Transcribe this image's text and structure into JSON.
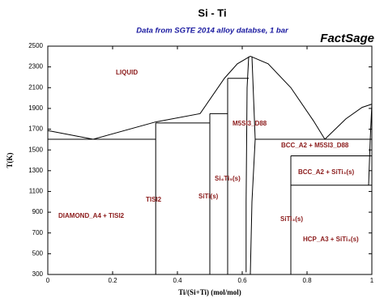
{
  "chart_data": {
    "type": "line",
    "title": "Si - Ti",
    "subtitle": "Data from SGTE 2014 alloy databse, 1 bar",
    "brand": "FactSage",
    "x_label": "Ti/(Si+Ti) (mol/mol)",
    "y_label": "T(K)",
    "xlim": [
      0,
      1
    ],
    "ylim": [
      300,
      2500
    ],
    "xticks": [
      0,
      0.2,
      0.4,
      0.6,
      0.8,
      1
    ],
    "yticks": [
      300,
      500,
      700,
      900,
      1100,
      1300,
      1500,
      1700,
      1900,
      2100,
      2300,
      2500
    ],
    "color": "#000000",
    "annotation_color": "#8b1a1a",
    "series": [
      {
        "x": [
          0,
          0.14,
          0.333
        ],
        "values": [
          1687,
          1603,
          1770
        ]
      },
      {
        "x": [
          0.333,
          0.47,
          0.545,
          0.585,
          0.625
        ],
        "values": [
          1770,
          1850,
          2190,
          2330,
          2403
        ]
      },
      {
        "x": [
          0.625,
          0.68,
          0.75,
          0.82,
          0.855
        ],
        "values": [
          2403,
          2330,
          2100,
          1780,
          1603
        ]
      },
      {
        "x": [
          0.855,
          0.92,
          0.97,
          1
        ],
        "values": [
          1603,
          1800,
          1910,
          1941
        ]
      },
      {
        "x": [
          0,
          0.333
        ],
        "values": [
          1603,
          1603
        ]
      },
      {
        "x": [
          0.333,
          0.5
        ],
        "values": [
          1760,
          1760
        ]
      },
      {
        "x": [
          0.5,
          0.555
        ],
        "values": [
          1850,
          1850
        ]
      },
      {
        "x": [
          0.555,
          0.62
        ],
        "values": [
          2190,
          2190
        ]
      },
      {
        "x": [
          0.64,
          1
        ],
        "values": [
          1603,
          1603
        ]
      },
      {
        "x": [
          0.75,
          1
        ],
        "values": [
          1443,
          1443
        ]
      },
      {
        "x": [
          0.75,
          1
        ],
        "values": [
          1160,
          1160
        ]
      },
      {
        "x": [
          0.333,
          0.333
        ],
        "values": [
          300,
          1760
        ]
      },
      {
        "x": [
          0.5,
          0.5
        ],
        "values": [
          300,
          1850
        ]
      },
      {
        "x": [
          0.555,
          0.555
        ],
        "values": [
          300,
          2190
        ]
      },
      {
        "x": [
          0.75,
          0.75
        ],
        "values": [
          300,
          1443
        ]
      },
      {
        "x": [
          0.62,
          0.615,
          0.612,
          0.612
        ],
        "values": [
          2400,
          2100,
          1000,
          320
        ]
      },
      {
        "x": [
          0.63,
          0.635,
          0.64,
          0.63,
          0.625
        ],
        "values": [
          2400,
          2000,
          1603,
          1000,
          300
        ]
      },
      {
        "x": [
          0.99,
          0.995,
          1
        ],
        "values": [
          1160,
          1600,
          1941
        ]
      }
    ],
    "annotations": [
      {
        "text": "LIQUID",
        "x": 0.21,
        "y": 2245
      },
      {
        "text": "M5SI3_D88",
        "x": 0.57,
        "y": 1753
      },
      {
        "text": "BCC_A2 + M5SI3_D88",
        "x": 0.72,
        "y": 1542
      },
      {
        "text": "BCC_A2 + SiTi₃(s)",
        "x": 0.7725,
        "y": 1284
      },
      {
        "text": "Si₄Ti₅(s)",
        "x": 0.515,
        "y": 1222
      },
      {
        "text": "SiTi(s)",
        "x": 0.465,
        "y": 1050
      },
      {
        "text": "TISI2",
        "x": 0.3025,
        "y": 1019
      },
      {
        "text": "DIAMOND_A4 + TISI2",
        "x": 0.0325,
        "y": 862
      },
      {
        "text": "SiTi₃(s)",
        "x": 0.7175,
        "y": 831
      },
      {
        "text": "HCP_A3 + SiTi₃(s)",
        "x": 0.7875,
        "y": 636
      }
    ]
  }
}
